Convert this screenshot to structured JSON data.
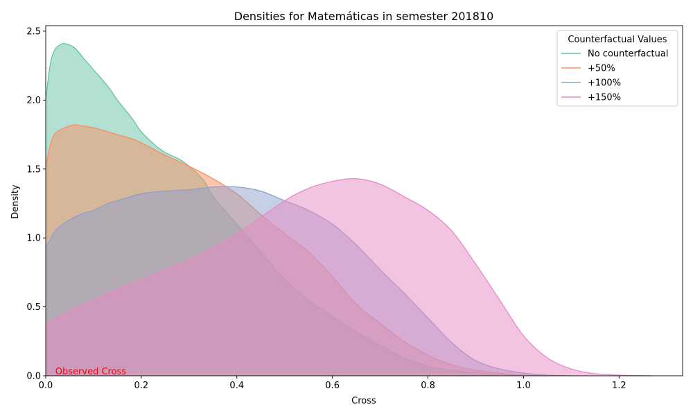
{
  "chart_data": {
    "type": "area",
    "title": "Densities for Matemáticas in semester 201810",
    "xlabel": "Cross",
    "ylabel": "Density",
    "xlim": [
      0,
      1.333
    ],
    "ylim": [
      0,
      2.54
    ],
    "xticks": [
      0.0,
      0.2,
      0.4,
      0.6,
      0.8,
      1.0,
      1.2
    ],
    "xtick_labels": [
      "0.0",
      "0.2",
      "0.4",
      "0.6",
      "0.8",
      "1.0",
      "1.2"
    ],
    "yticks": [
      0.0,
      0.5,
      1.0,
      1.5,
      2.0,
      2.5
    ],
    "ytick_labels": [
      "0.0",
      "0.5",
      "1.0",
      "1.5",
      "2.0",
      "2.5"
    ],
    "grid": false,
    "legend": {
      "title": "Counterfactual Values",
      "placement": "top-right"
    },
    "annotation": {
      "text": "Observed Cross",
      "x": 0.02,
      "y": 0.03,
      "color": "#ff0000"
    },
    "series": [
      {
        "name": "No counterfactual",
        "color": "#66c2a5",
        "x": [
          0,
          0.01,
          0.02,
          0.03,
          0.04,
          0.06,
          0.08,
          0.1,
          0.13,
          0.15,
          0.18,
          0.2,
          0.23,
          0.25,
          0.28,
          0.3,
          0.33,
          0.35,
          0.38,
          0.4,
          0.45,
          0.5,
          0.55,
          0.6,
          0.65,
          0.7,
          0.75,
          0.8,
          0.85,
          0.9,
          0.95,
          1.0
        ],
        "y": [
          2.0,
          2.27,
          2.37,
          2.4,
          2.41,
          2.38,
          2.3,
          2.22,
          2.1,
          2.0,
          1.87,
          1.77,
          1.67,
          1.62,
          1.57,
          1.52,
          1.42,
          1.3,
          1.18,
          1.1,
          0.9,
          0.7,
          0.55,
          0.43,
          0.32,
          0.22,
          0.13,
          0.07,
          0.04,
          0.02,
          0.01,
          0.0
        ]
      },
      {
        "name": "+50%",
        "color": "#fc8d62",
        "x": [
          0,
          0.01,
          0.02,
          0.04,
          0.06,
          0.08,
          0.1,
          0.13,
          0.15,
          0.18,
          0.2,
          0.25,
          0.3,
          0.35,
          0.4,
          0.45,
          0.5,
          0.55,
          0.6,
          0.65,
          0.7,
          0.75,
          0.8,
          0.85,
          0.9,
          0.95,
          1.0,
          1.05
        ],
        "y": [
          1.52,
          1.68,
          1.76,
          1.8,
          1.82,
          1.81,
          1.8,
          1.77,
          1.75,
          1.72,
          1.69,
          1.6,
          1.52,
          1.43,
          1.32,
          1.17,
          1.03,
          0.9,
          0.72,
          0.52,
          0.38,
          0.25,
          0.15,
          0.08,
          0.04,
          0.02,
          0.005,
          0.0
        ]
      },
      {
        "name": "+100%",
        "color": "#8da0cb",
        "x": [
          0,
          0.02,
          0.04,
          0.06,
          0.08,
          0.1,
          0.13,
          0.15,
          0.2,
          0.25,
          0.3,
          0.35,
          0.4,
          0.45,
          0.5,
          0.55,
          0.6,
          0.65,
          0.7,
          0.75,
          0.8,
          0.85,
          0.9,
          0.95,
          1.0,
          1.05,
          1.1
        ],
        "y": [
          0.93,
          1.05,
          1.11,
          1.15,
          1.18,
          1.2,
          1.25,
          1.27,
          1.32,
          1.34,
          1.35,
          1.37,
          1.37,
          1.34,
          1.27,
          1.2,
          1.1,
          0.95,
          0.77,
          0.6,
          0.42,
          0.24,
          0.11,
          0.05,
          0.02,
          0.005,
          0.0
        ]
      },
      {
        "name": "+150%",
        "color": "#e78ac3",
        "x": [
          0,
          0.05,
          0.1,
          0.15,
          0.2,
          0.25,
          0.3,
          0.35,
          0.4,
          0.45,
          0.5,
          0.55,
          0.6,
          0.65,
          0.7,
          0.75,
          0.8,
          0.85,
          0.9,
          0.95,
          1.0,
          1.05,
          1.1,
          1.15,
          1.2,
          1.25,
          1.27
        ],
        "y": [
          0.38,
          0.47,
          0.55,
          0.63,
          0.7,
          0.77,
          0.84,
          0.93,
          1.03,
          1.15,
          1.27,
          1.36,
          1.41,
          1.43,
          1.39,
          1.3,
          1.2,
          1.05,
          0.81,
          0.55,
          0.29,
          0.13,
          0.05,
          0.015,
          0.005,
          0.001,
          0.0
        ]
      }
    ]
  }
}
